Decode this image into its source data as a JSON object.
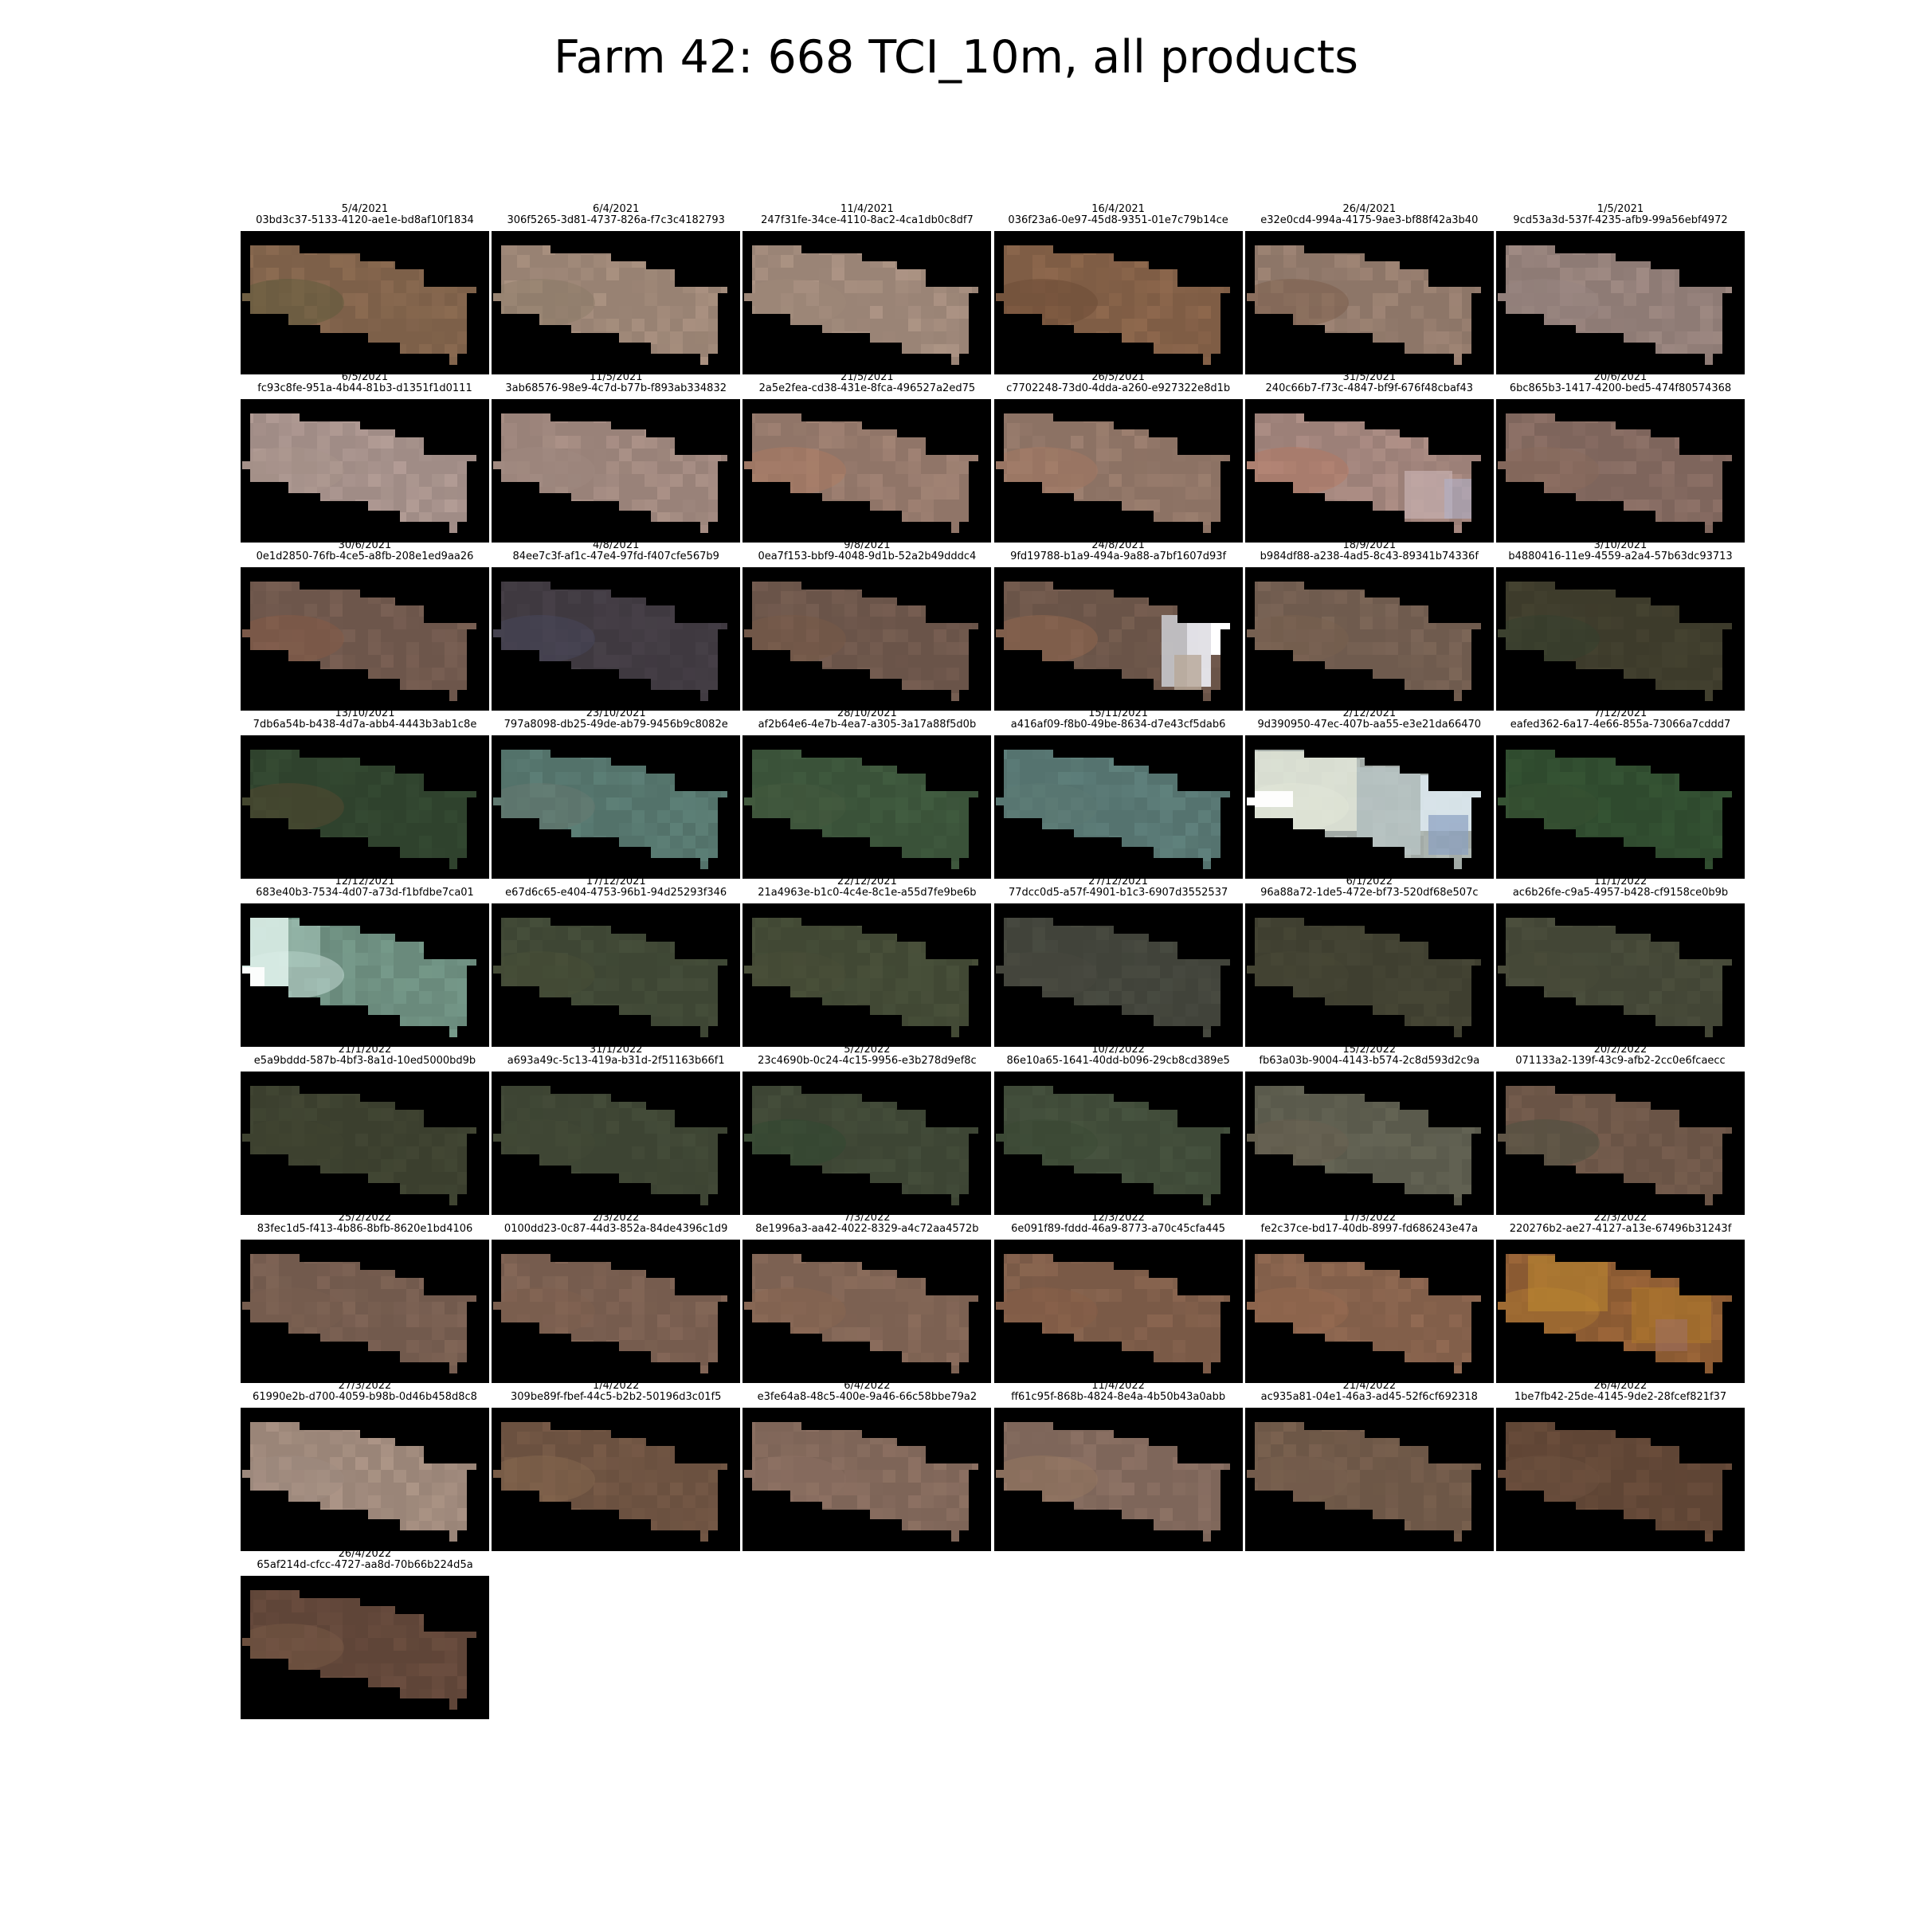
{
  "title": "Farm 42: 668 TCI_10m, all products",
  "products": [
    {
      "date": "5/4/2021",
      "id": "03bd3c37-5133-4120-ae1e-bd8af10f1834",
      "color": "#7d6049",
      "accent": "#5a5a3a",
      "patch": "none"
    },
    {
      "date": "6/4/2021",
      "id": "306f5265-3d81-4737-826a-f7c3c4182793",
      "color": "#988273",
      "accent": "#8a7a66",
      "patch": "none"
    },
    {
      "date": "11/4/2021",
      "id": "247f31fe-34ce-4110-8ac2-4ca1db0c8df7",
      "color": "#9a8476",
      "accent": "#a08a7a",
      "patch": "none"
    },
    {
      "date": "16/4/2021",
      "id": "036f23a6-0e97-45d8-9351-01e7c79b14ce",
      "color": "#7f5d45",
      "accent": "#6a4a34",
      "patch": "none"
    },
    {
      "date": "26/4/2021",
      "id": "e32e0cd4-994a-4175-9ae3-bf88f42a3b40",
      "color": "#8d7668",
      "accent": "#7a5a48",
      "patch": "none"
    },
    {
      "date": "1/5/2021",
      "id": "9cd53a3d-537f-4235-afb9-99a56ebf4972",
      "color": "#8e7b75",
      "accent": "#968480",
      "patch": "none"
    },
    {
      "date": "6/5/2021",
      "id": "fc93c8fe-951a-4b44-81b3-d1351f1d0111",
      "color": "#a08c86",
      "accent": "#a8948c",
      "patch": "none"
    },
    {
      "date": "11/5/2021",
      "id": "3ab68576-98e9-4c7d-b77b-f893ab334832",
      "color": "#998279",
      "accent": "#a08a80",
      "patch": "none"
    },
    {
      "date": "21/5/2021",
      "id": "2a5e2fea-cd38-431e-8fca-496527a2ed75",
      "color": "#907568",
      "accent": "#b07a60",
      "patch": "none"
    },
    {
      "date": "26/5/2021",
      "id": "c7702248-73d0-4dda-a260-e927322e8d1b",
      "color": "#8c7264",
      "accent": "#a87a62",
      "patch": "none"
    },
    {
      "date": "31/5/2021",
      "id": "240c66b7-f73c-4847-bf9f-676f48cbaf43",
      "color": "#9c8078",
      "accent": "#b87860",
      "patch": "bright-right"
    },
    {
      "date": "20/6/2021",
      "id": "6bc865b3-1417-4200-bed5-474f80574368",
      "color": "#7e655c",
      "accent": "#8a6a5a",
      "patch": "none"
    },
    {
      "date": "30/6/2021",
      "id": "0e1d2850-76fb-4ce5-a8fb-208e1ed9aa26",
      "color": "#6d564b",
      "accent": "#8a5a44",
      "patch": "none"
    },
    {
      "date": "4/8/2021",
      "id": "84ee7c3f-af1c-47e4-97fd-f407cfe567b9",
      "color": "#3f3940",
      "accent": "#4a4a60",
      "patch": "none"
    },
    {
      "date": "9/8/2021",
      "id": "0ea7f153-bbf9-4048-9d1b-52a2b49dddc4",
      "color": "#6a5449",
      "accent": "#7a5a48",
      "patch": "none"
    },
    {
      "date": "24/8/2021",
      "id": "9fd19788-b1a9-494a-9a88-a7bf1607d93f",
      "color": "#6a5448",
      "accent": "#9a6a50",
      "patch": "snow-right"
    },
    {
      "date": "18/9/2021",
      "id": "b984df88-a238-4ad5-8c43-89341b74336f",
      "color": "#6f5b4e",
      "accent": "#7a6250",
      "patch": "none"
    },
    {
      "date": "3/10/2021",
      "id": "b4880416-11e9-4559-a2a4-57b63dc93713",
      "color": "#3d3b2b",
      "accent": "#34402e",
      "patch": "none"
    },
    {
      "date": "13/10/2021",
      "id": "7db6a54b-b438-4d7a-abb4-4443b3ab1c8e",
      "color": "#2f422d",
      "accent": "#5a4a30",
      "patch": "none"
    },
    {
      "date": "23/10/2021",
      "id": "797a8098-db25-49de-ab79-9456b9c8082e",
      "color": "#53726a",
      "accent": "#6a7a70",
      "patch": "none"
    },
    {
      "date": "28/10/2021",
      "id": "af2b64e6-4e7b-4ea7-a305-3a17a88f5d0b",
      "color": "#3a5239",
      "accent": "#44583e",
      "patch": "none"
    },
    {
      "date": "15/11/2021",
      "id": "a416af09-f8b0-49be-8634-d7e43cf5dab6",
      "color": "#55736f",
      "accent": "#5e7a74",
      "patch": "none"
    },
    {
      "date": "2/12/2021",
      "id": "9d390950-47ec-407b-aa55-e3e21da66470",
      "color": "#a2aaa6",
      "accent": "#e6ecd8",
      "patch": "snow-all"
    },
    {
      "date": "7/12/2021",
      "id": "eafed362-6a17-4e66-855a-73066a7cddd7",
      "color": "#2f4a2e",
      "accent": "#3a5234",
      "patch": "none"
    },
    {
      "date": "12/12/2021",
      "id": "683e40b3-7534-4d07-a73d-f1bfdbe7ca01",
      "color": "#6a8a7c",
      "accent": "#d8ece6",
      "patch": "snow-left"
    },
    {
      "date": "17/12/2021",
      "id": "e67d6c65-e404-4753-96b1-94d25293f346",
      "color": "#3e4634",
      "accent": "#4a5038",
      "patch": "none"
    },
    {
      "date": "22/12/2021",
      "id": "21a4963e-b1c0-4c4e-8c1e-a55d7fe9be6b",
      "color": "#414834",
      "accent": "#4a4e38",
      "patch": "none"
    },
    {
      "date": "27/12/2021",
      "id": "77dcc0d5-a57f-4901-b1c3-6907d3552537",
      "color": "#41433a",
      "accent": "#4a4a40",
      "patch": "none"
    },
    {
      "date": "6/1/2022",
      "id": "96a88a72-1de5-472e-bf73-520df68e507c",
      "color": "#3f3f30",
      "accent": "#464636",
      "patch": "none"
    },
    {
      "date": "11/1/2022",
      "id": "ac6b26fe-c9a5-4957-b428-cf9158ce0b9b",
      "color": "#434636",
      "accent": "#4a4c3a",
      "patch": "none"
    },
    {
      "date": "21/1/2022",
      "id": "e5a9bddd-587b-4bf3-8a1d-10ed5000bd9b",
      "color": "#3b3f2e",
      "accent": "#404430",
      "patch": "none"
    },
    {
      "date": "31/1/2022",
      "id": "a693a49c-5c13-419a-b31d-2f51163b66f1",
      "color": "#3d4433",
      "accent": "#424a36",
      "patch": "none"
    },
    {
      "date": "5/2/2022",
      "id": "23c4690b-0c24-4c15-9956-e3b278d9ef8c",
      "color": "#3d4534",
      "accent": "#2e4a30",
      "patch": "none"
    },
    {
      "date": "10/2/2022",
      "id": "86e10a65-1641-40dd-b096-29cb8cd389e5",
      "color": "#3f4a38",
      "accent": "#3a4a34",
      "patch": "none"
    },
    {
      "date": "15/2/2022",
      "id": "fb63a03b-9004-4143-b574-2c8d593d2c9a",
      "color": "#5a5a4c",
      "accent": "#6a6050",
      "patch": "none"
    },
    {
      "date": "20/2/2022",
      "id": "071133a2-139f-43c9-afb2-2cc0e6fcaecc",
      "color": "#6a5446",
      "accent": "#4a5040",
      "patch": "none"
    },
    {
      "date": "25/2/2022",
      "id": "83fec1d5-f413-4b86-8bfb-8620e1bd4106",
      "color": "#725a4d",
      "accent": "#7a6050",
      "patch": "none"
    },
    {
      "date": "2/3/2022",
      "id": "0100dd23-0c87-44d3-852a-84de4396c1d9",
      "color": "#765c4e",
      "accent": "#806250",
      "patch": "none"
    },
    {
      "date": "7/3/2022",
      "id": "8e1996a3-aa42-4022-8329-a4c72aa4572b",
      "color": "#7c6152",
      "accent": "#8a6650",
      "patch": "none"
    },
    {
      "date": "12/3/2022",
      "id": "6e091f89-fddd-46a9-8773-a70c45cfa445",
      "color": "#7a5a47",
      "accent": "#8a6048",
      "patch": "none"
    },
    {
      "date": "17/3/2022",
      "id": "fe2c37ce-bd17-40db-8997-fd686243e47a",
      "color": "#825f4a",
      "accent": "#9a6a50",
      "patch": "none"
    },
    {
      "date": "22/3/2022",
      "id": "220276b2-ae27-4127-a13e-67496b31243f",
      "color": "#8a5a32",
      "accent": "#b07a30",
      "patch": "orange"
    },
    {
      "date": "27/3/2022",
      "id": "61990e2b-d700-4059-b98b-0d46b458d8c8",
      "color": "#9a8578",
      "accent": "#a08c80",
      "patch": "none"
    },
    {
      "date": "1/4/2022",
      "id": "309be89f-fbef-44c5-b2b2-50196d3c01f5",
      "color": "#6b5140",
      "accent": "#8a6a50",
      "patch": "none"
    },
    {
      "date": "6/4/2022",
      "id": "e3fe64a8-48c5-400e-9a46-66c58bbe79a2",
      "color": "#7e6558",
      "accent": "#8e7264",
      "patch": "none"
    },
    {
      "date": "11/4/2022",
      "id": "ff61c95f-868b-4824-8e4a-4b50b43a0abb",
      "color": "#7e665a",
      "accent": "#9a7a62",
      "patch": "none"
    },
    {
      "date": "21/4/2022",
      "id": "ac935a81-04e1-46a3-ad45-52f6cf692318",
      "color": "#6d5747",
      "accent": "#7a6250",
      "patch": "none"
    },
    {
      "date": "26/4/2022",
      "id": "1be7fb42-25de-4145-9de2-28fcef821f37",
      "color": "#5f4535",
      "accent": "#6e5240",
      "patch": "none"
    },
    {
      "date": "26/4/2022",
      "id": "65af214d-cfcc-4727-aa8d-70b66b224d5a",
      "color": "#5f4538",
      "accent": "#7a5a48",
      "patch": "none"
    }
  ]
}
